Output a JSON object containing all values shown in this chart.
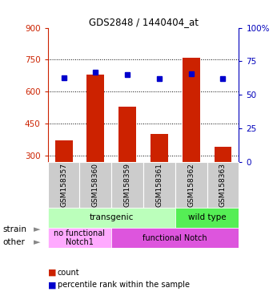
{
  "title": "GDS2848 / 1440404_at",
  "samples": [
    "GSM158357",
    "GSM158360",
    "GSM158359",
    "GSM158361",
    "GSM158362",
    "GSM158363"
  ],
  "counts": [
    370,
    680,
    530,
    400,
    760,
    340
  ],
  "percentiles": [
    63,
    67,
    65,
    62,
    66,
    62
  ],
  "ylim_left": [
    270,
    900
  ],
  "ylim_right": [
    0,
    100
  ],
  "yticks_left": [
    300,
    450,
    600,
    750,
    900
  ],
  "yticks_right": [
    0,
    25,
    50,
    75,
    100
  ],
  "bar_color": "#cc2200",
  "dot_color": "#0000cc",
  "strain_labels": [
    {
      "text": "transgenic",
      "span": [
        0,
        4
      ],
      "color": "#bbffbb"
    },
    {
      "text": "wild type",
      "span": [
        4,
        6
      ],
      "color": "#55ee55"
    }
  ],
  "other_labels": [
    {
      "text": "no functional\nNotch1",
      "span": [
        0,
        2
      ],
      "color": "#ffaaff"
    },
    {
      "text": "functional Notch",
      "span": [
        2,
        6
      ],
      "color": "#dd55dd"
    }
  ],
  "legend_items": [
    {
      "label": "count",
      "color": "#cc2200"
    },
    {
      "label": "percentile rank within the sample",
      "color": "#0000cc"
    }
  ],
  "background_color": "#ffffff",
  "tick_label_color_left": "#cc2200",
  "tick_label_color_right": "#0000bb",
  "xlabel_color": "#000000",
  "grid_dotted_ticks": [
    300,
    450,
    600,
    750
  ]
}
